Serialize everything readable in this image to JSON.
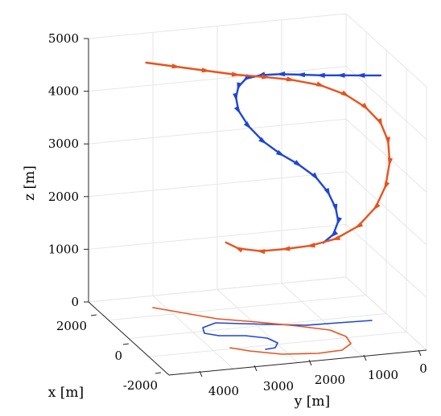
{
  "chart_data": {
    "type": "line",
    "title": "",
    "xlabel": "x [m]",
    "ylabel": "y [m]",
    "zlabel": "z [m]",
    "grid": true,
    "view": "3d",
    "colors": {
      "blue": "#1f45d6",
      "orange": "#e8531c"
    },
    "z_axis": {
      "ticks": [
        0,
        1000,
        2000,
        3000,
        4000,
        5000
      ],
      "tick_labels": [
        "0",
        "1000",
        "2000",
        "3000",
        "4000",
        "5000"
      ],
      "range": [
        0,
        5000
      ]
    },
    "y_axis": {
      "ticks": [
        4000,
        3000,
        2000,
        1000,
        0
      ],
      "tick_labels": [
        "4000",
        "3000",
        "2000",
        "1000",
        "0"
      ]
    },
    "x_axis": {
      "ticks": [
        2000,
        0,
        -2000
      ],
      "tick_labels": [
        "2000",
        "0",
        "-2000"
      ]
    },
    "series": [
      {
        "color": "blue",
        "points": [
          [
            0,
            4300
          ],
          [
            -400,
            4310
          ],
          [
            -800,
            4320
          ],
          [
            -1200,
            4330
          ],
          [
            -1600,
            4350
          ],
          [
            -2000,
            4370
          ],
          [
            -2400,
            4360
          ],
          [
            -2700,
            4300
          ],
          [
            -2850,
            4150
          ],
          [
            -2900,
            3950
          ],
          [
            -2850,
            3700
          ],
          [
            -2650,
            3400
          ],
          [
            -2350,
            3100
          ],
          [
            -2000,
            2850
          ],
          [
            -1650,
            2650
          ],
          [
            -1300,
            2400
          ],
          [
            -1050,
            2100
          ],
          [
            -900,
            1800
          ],
          [
            -850,
            1550
          ],
          [
            -950,
            1300
          ],
          [
            -1150,
            1150
          ]
        ]
      },
      {
        "color": "orange",
        "points": [
          [
            -4700,
            4650
          ],
          [
            -4100,
            4560
          ],
          [
            -3500,
            4470
          ],
          [
            -2900,
            4380
          ],
          [
            -2300,
            4320
          ],
          [
            -1800,
            4260
          ],
          [
            -1200,
            4140
          ],
          [
            -700,
            3950
          ],
          [
            -300,
            3700
          ],
          [
            0,
            3400
          ],
          [
            150,
            3050
          ],
          [
            180,
            2650
          ],
          [
            100,
            2200
          ],
          [
            -100,
            1800
          ],
          [
            -450,
            1450
          ],
          [
            -900,
            1220
          ],
          [
            -1400,
            1100
          ],
          [
            -1900,
            1050
          ],
          [
            -2400,
            1020
          ],
          [
            -2850,
            1080
          ],
          [
            -3100,
            1200
          ]
        ]
      }
    ]
  }
}
